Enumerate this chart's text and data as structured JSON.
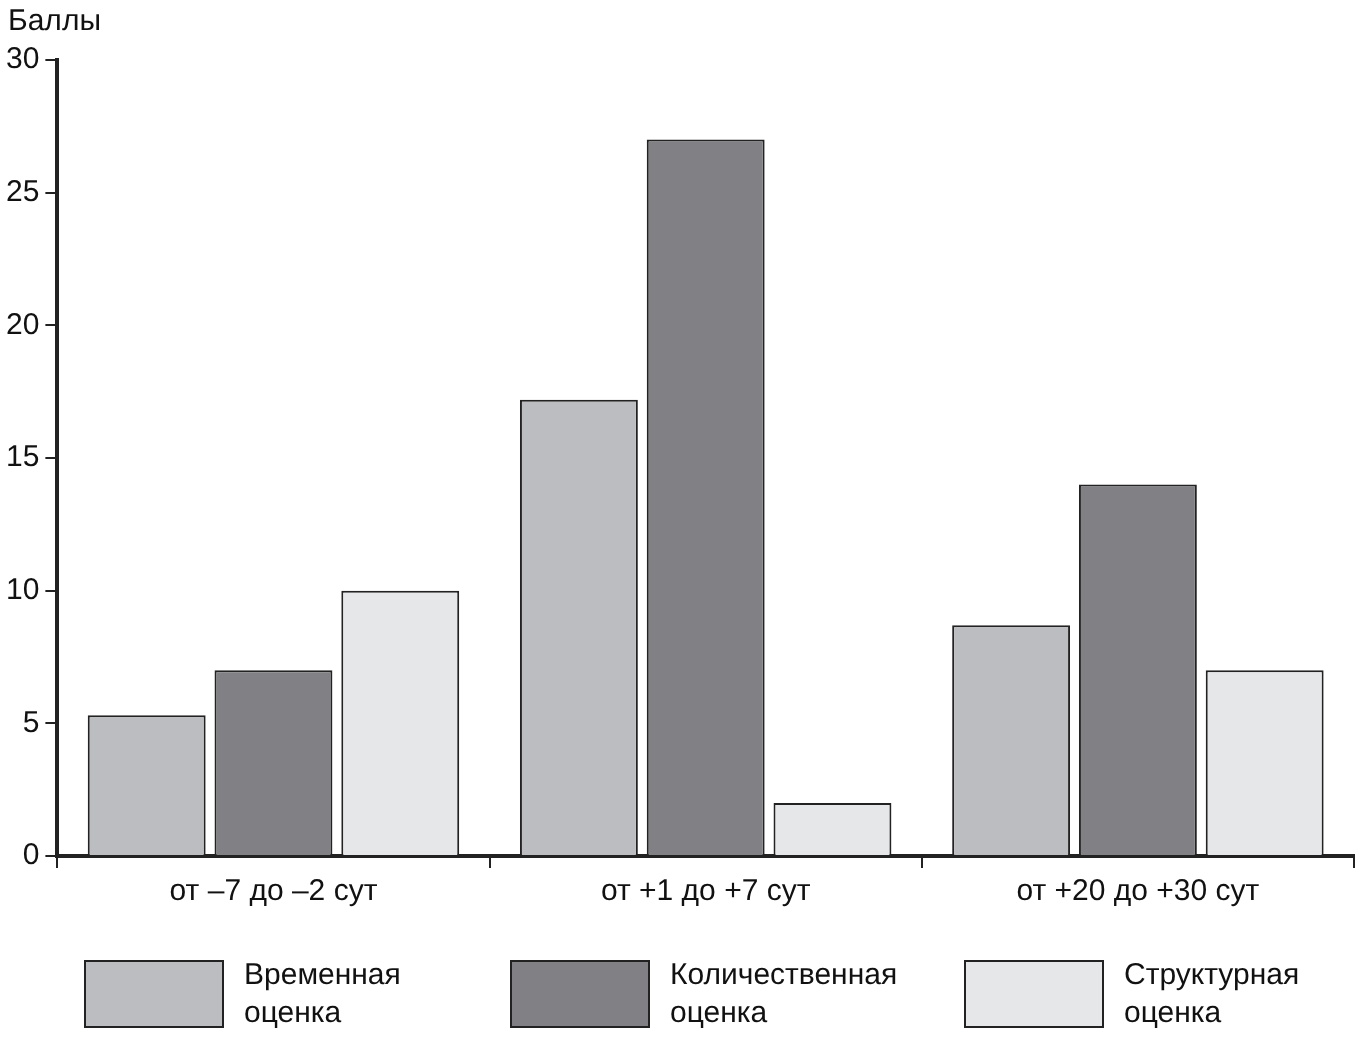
{
  "chart_data": {
    "type": "bar",
    "ylabel": "Баллы",
    "categories": [
      "от –7 до –2 сут",
      "от +1 до +7 сут",
      "от +20 до +30 сут"
    ],
    "series": [
      {
        "name": "Временная оценка",
        "color": "#bcbdc0",
        "values": [
          5.3,
          17.2,
          8.7
        ]
      },
      {
        "name": "Количественная оценка",
        "color": "#808085",
        "values": [
          7,
          27,
          14
        ]
      },
      {
        "name": "Структурная оценка",
        "color": "#e6e7e8",
        "values": [
          10,
          2,
          7
        ]
      }
    ],
    "ylim": [
      0,
      30
    ],
    "yticks": [
      0,
      5,
      10,
      15,
      20,
      25,
      30
    ],
    "grid": false,
    "legend": "bottom"
  }
}
